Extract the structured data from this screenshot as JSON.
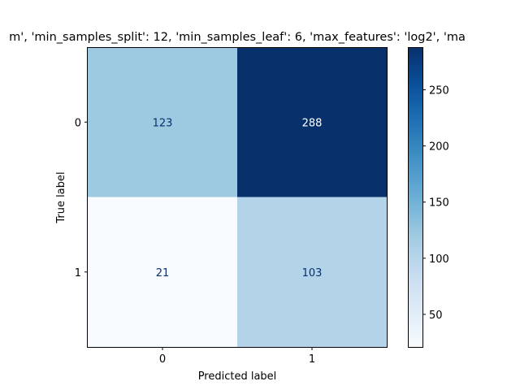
{
  "chart_data": {
    "type": "heatmap",
    "title": "m', 'min_samples_split': 12, 'min_samples_leaf': 6, 'max_features': 'log2', 'ma",
    "xlabel": "Predicted label",
    "ylabel": "True label",
    "x_categories": [
      "0",
      "1"
    ],
    "y_categories": [
      "0",
      "1"
    ],
    "values": [
      [
        123,
        288
      ],
      [
        21,
        103
      ]
    ],
    "colormap": "Blues",
    "colorbar": {
      "range": [
        21,
        288
      ],
      "ticks": [
        50,
        100,
        150,
        200,
        250
      ]
    },
    "cell_colors": [
      [
        "#9ecae1",
        "#08306b"
      ],
      [
        "#f7fbff",
        "#b3d3e8"
      ]
    ],
    "text_colors": {
      "light": "#ffffff",
      "dark": "#08306b"
    },
    "grid": false
  }
}
